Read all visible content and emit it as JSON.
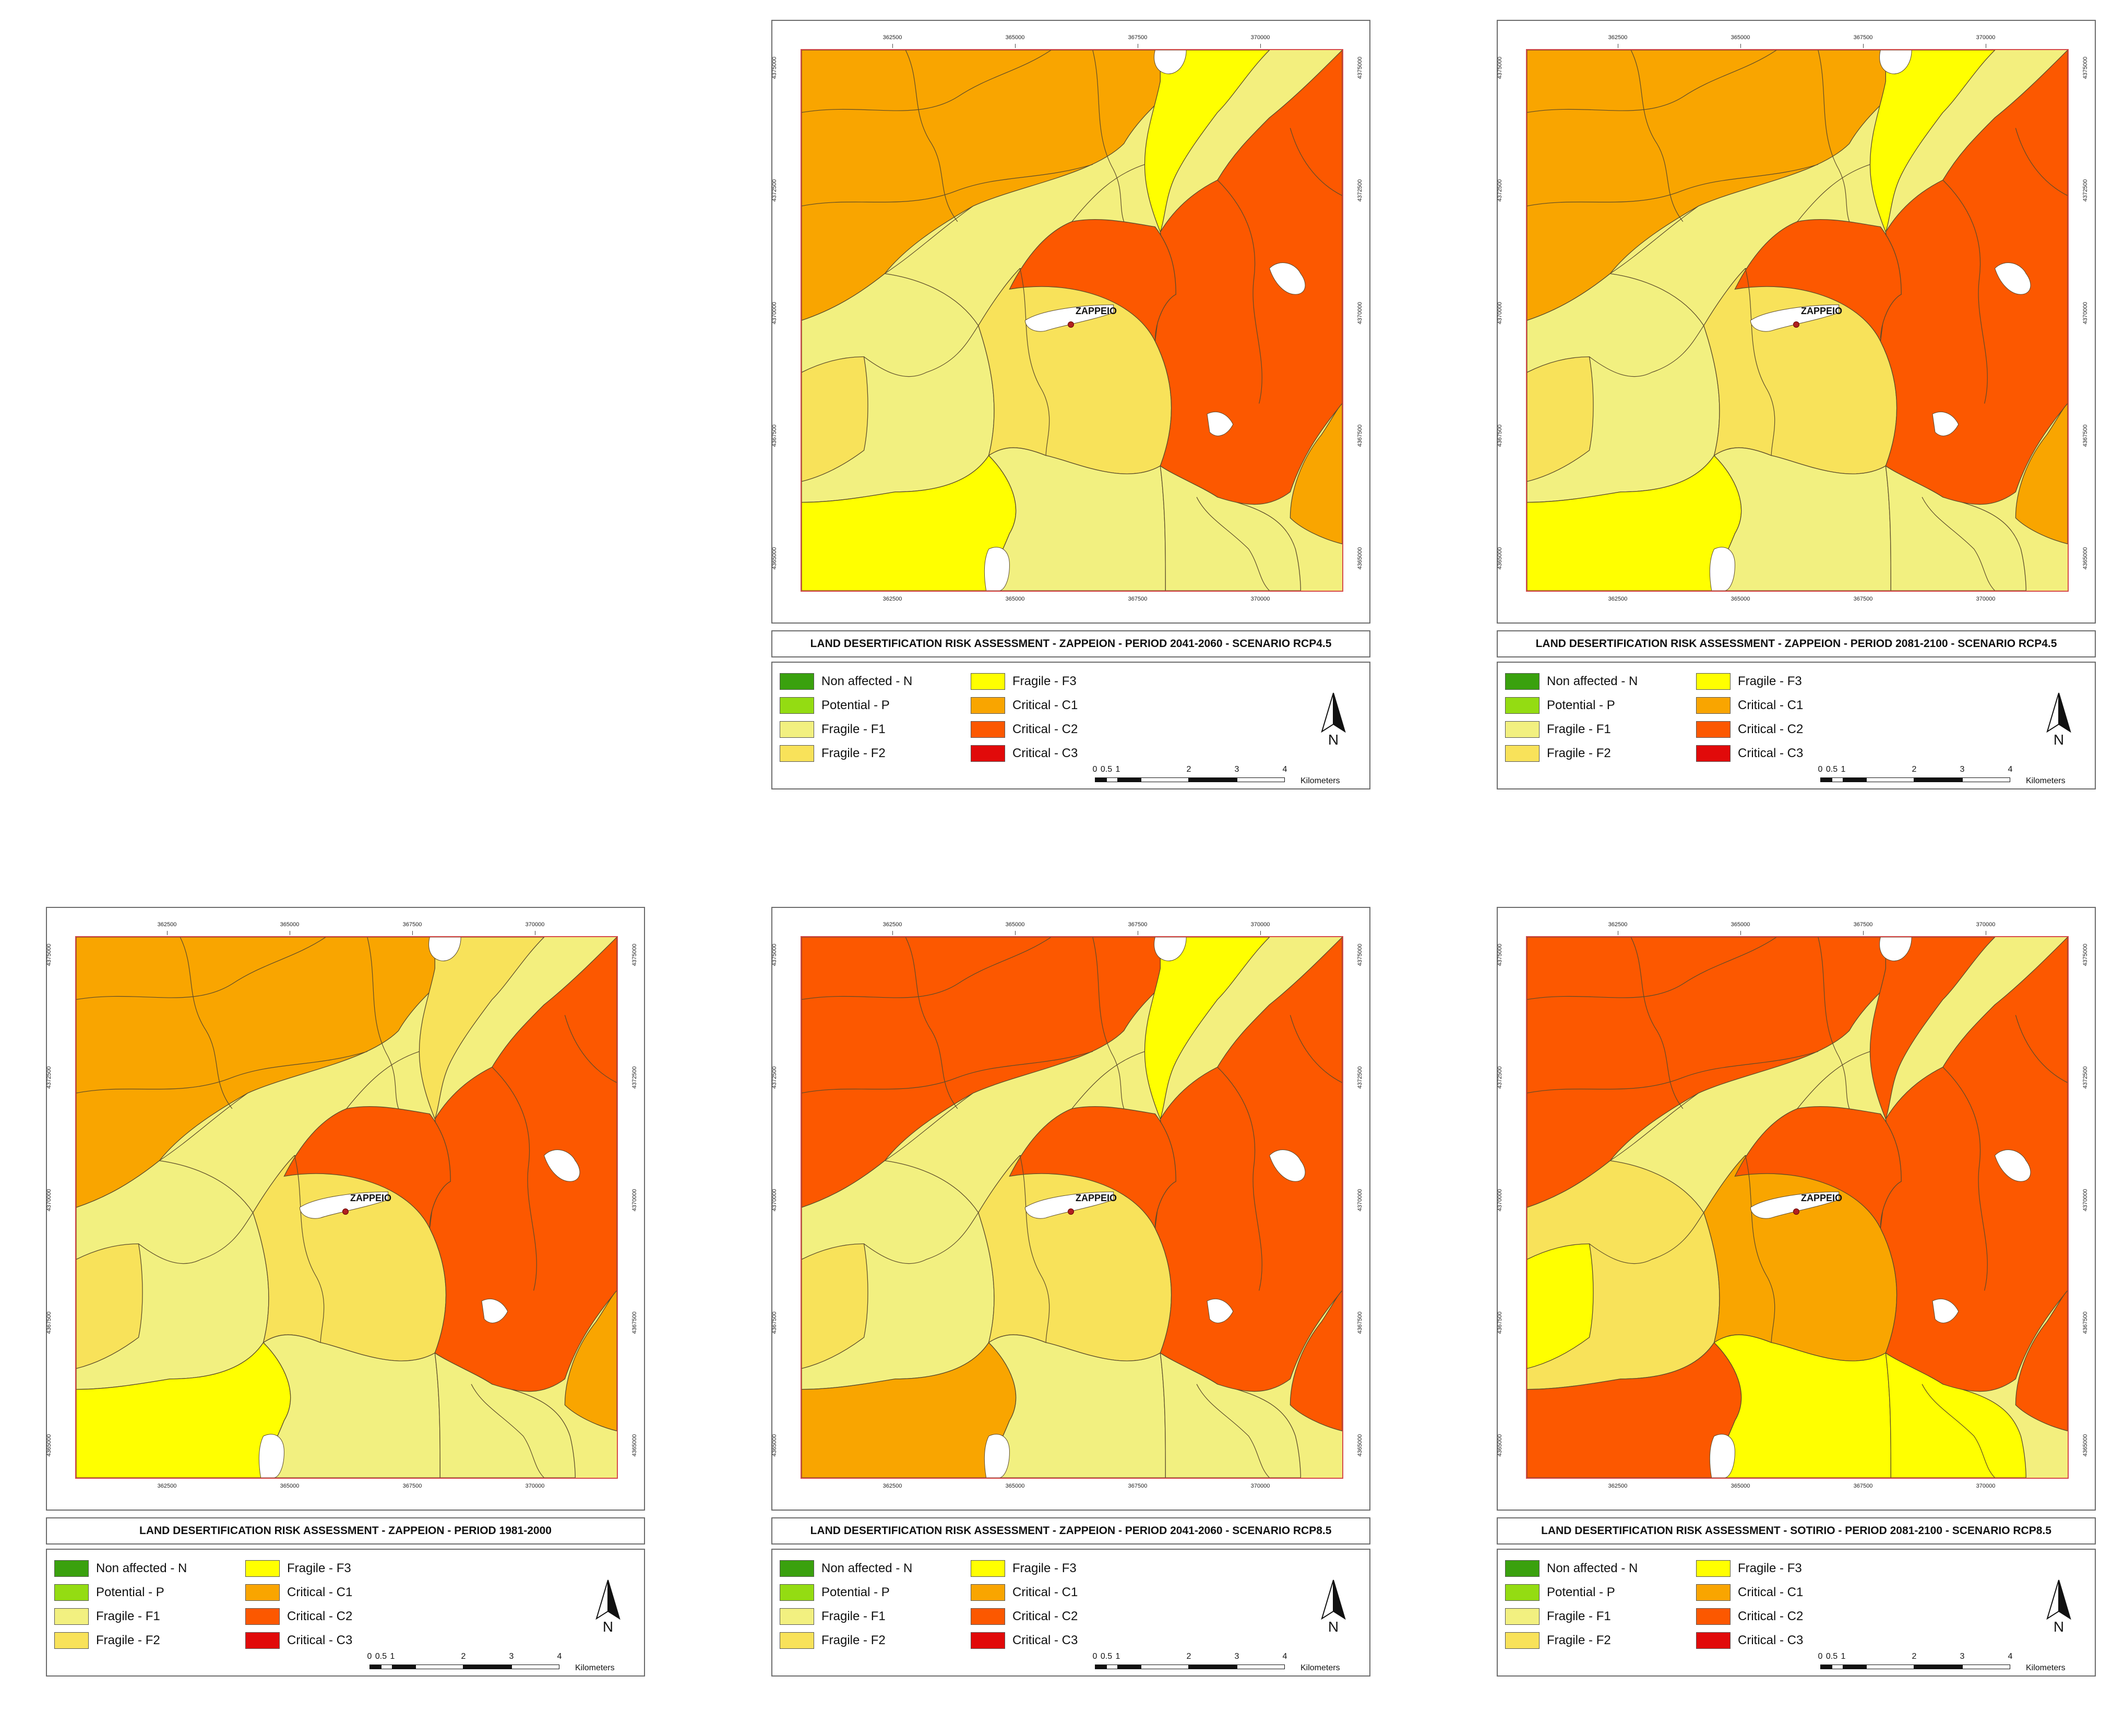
{
  "axis": {
    "x_ticks": [
      "362500",
      "365000",
      "367500",
      "370000"
    ],
    "y_ticks": [
      "4375000",
      "4372500",
      "4370000",
      "4367500",
      "4365000"
    ]
  },
  "town_label": "ZAPPEIO",
  "legend": [
    {
      "label": "Non affected - N",
      "color": "#3aa10e"
    },
    {
      "label": "Potential - P",
      "color": "#94dc12"
    },
    {
      "label": "Fragile - F1",
      "color": "#f2f080"
    },
    {
      "label": "Fragile - F2",
      "color": "#f8e25a"
    },
    {
      "label": "Fragile - F3",
      "color": "#ffff00"
    },
    {
      "label": "Critical - C1",
      "color": "#f9a500"
    },
    {
      "label": "Critical - C2",
      "color": "#fc5800"
    },
    {
      "label": "Critical - C3",
      "color": "#e10a0a"
    }
  ],
  "north_label": "N",
  "scale": {
    "labels": [
      "0",
      "0.5",
      "1",
      "2",
      "3",
      "4"
    ],
    "unit": "Kilometers"
  },
  "maps": [
    {
      "id": "p2041_rcp45",
      "title": "LAND DESERTIFICATION RISK ASSESSMENT - ZAPPEION - PERIOD 2041-2060 - SCENARIO RCP4.5",
      "zones": {
        "nw": "#f9a500",
        "sw": "#f2f080",
        "s_left": "#ffff00",
        "c_mid": "#f8e25a",
        "e": "#fc5800",
        "n_strip": "#ffff00",
        "center_band": "#fc5800",
        "s_mid": "#f2f080",
        "se_lower": "#f2f080",
        "w_strip": "#f8e25a",
        "far_se": "#f9a500"
      }
    },
    {
      "id": "p2081_rcp45",
      "title": "LAND DESERTIFICATION RISK ASSESSMENT - ZAPPEION - PERIOD 2081-2100 - SCENARIO RCP4.5",
      "zones": {
        "nw": "#f9a500",
        "sw": "#f2f080",
        "s_left": "#ffff00",
        "c_mid": "#f8e25a",
        "e": "#fc5800",
        "n_strip": "#ffff00",
        "center_band": "#fc5800",
        "s_mid": "#f2f080",
        "se_lower": "#f2f080",
        "w_strip": "#f8e25a",
        "far_se": "#f9a500"
      }
    },
    {
      "id": "p1981",
      "title": "LAND DESERTIFICATION RISK ASSESSMENT - ZAPPEION - PERIOD 1981-2000",
      "zones": {
        "nw": "#f9a500",
        "sw": "#f2f080",
        "s_left": "#ffff00",
        "c_mid": "#f8e25a",
        "e": "#fc5800",
        "n_strip": "#f8e25a",
        "center_band": "#fc5800",
        "s_mid": "#f2f080",
        "se_lower": "#f2f080",
        "w_strip": "#f8e25a",
        "far_se": "#f9a500"
      }
    },
    {
      "id": "p2041_rcp85",
      "title": "LAND DESERTIFICATION RISK ASSESSMENT - ZAPPEION - PERIOD 2041-2060 - SCENARIO RCP8.5",
      "zones": {
        "nw": "#fc5800",
        "sw": "#f2f080",
        "s_left": "#f9a500",
        "c_mid": "#f8e25a",
        "e": "#fc5800",
        "n_strip": "#ffff00",
        "center_band": "#fc5800",
        "s_mid": "#f2f080",
        "se_lower": "#f2f080",
        "w_strip": "#f8e25a",
        "far_se": "#fc5800"
      }
    },
    {
      "id": "p2081_rcp85",
      "title": "LAND DESERTIFICATION RISK ASSESSMENT - SOTIRIO - PERIOD 2081-2100 - SCENARIO RCP8.5",
      "zones": {
        "nw": "#fc5800",
        "sw": "#f8e25a",
        "s_left": "#fc5800",
        "c_mid": "#f9a500",
        "e": "#fc5800",
        "n_strip": "#fc5800",
        "center_band": "#fc5800",
        "s_mid": "#ffff00",
        "se_lower": "#ffff00",
        "w_strip": "#ffff00",
        "far_se": "#fc5800"
      }
    }
  ]
}
